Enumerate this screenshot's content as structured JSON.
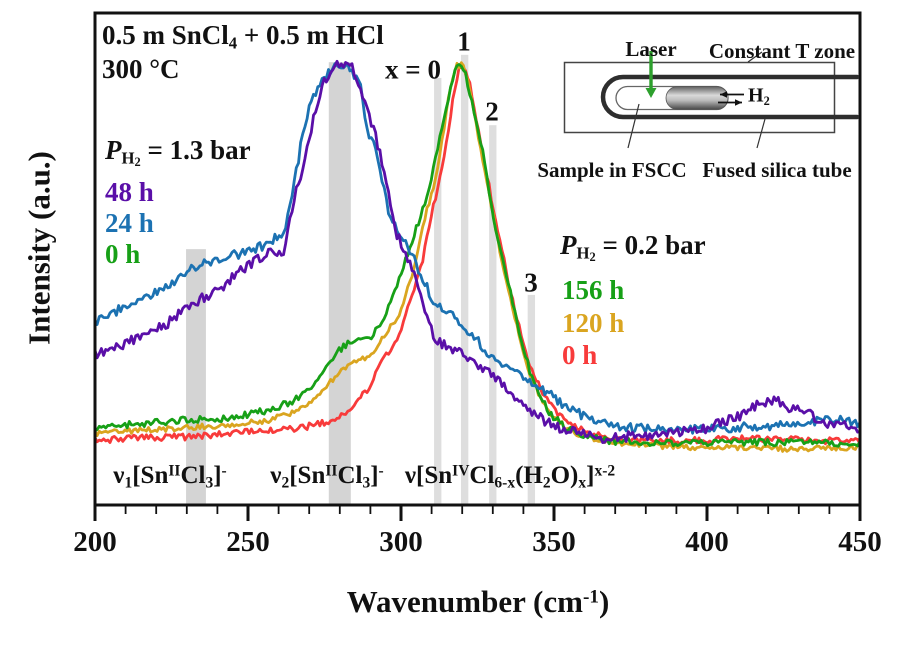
{
  "figure": {
    "title_line1_parts": [
      [
        "n",
        "0.5 m SnCl"
      ],
      [
        "sub",
        "4"
      ],
      [
        "n",
        " + 0.5 m HCl"
      ]
    ],
    "title_line2": "300 °C",
    "xlabel_parts": [
      [
        "n",
        "Wavenumber (cm"
      ],
      [
        "sup",
        "-1"
      ],
      [
        "n",
        ")"
      ]
    ],
    "ylabel": "Intensity (a.u.)"
  },
  "legends": {
    "left": {
      "header_parts": [
        [
          "i",
          "P"
        ],
        [
          "sub",
          "H"
        ],
        [
          "subsub",
          "2"
        ],
        [
          "n",
          " = 1.3 bar"
        ]
      ],
      "items": [
        {
          "label": "48 h",
          "color": "#5A0FA8"
        },
        {
          "label": "24 h",
          "color": "#1C72B2"
        },
        {
          "label": "0 h",
          "color": "#17A017"
        }
      ]
    },
    "right": {
      "header_parts": [
        [
          "i",
          "P"
        ],
        [
          "sub",
          "H"
        ],
        [
          "subsub",
          "2"
        ],
        [
          "n",
          " = 0.2 bar"
        ]
      ],
      "items": [
        {
          "label": "156 h",
          "color": "#17A017"
        },
        {
          "label": "120 h",
          "color": "#DAA520"
        },
        {
          "label": "0 h",
          "color": "#F83B3B"
        }
      ]
    }
  },
  "peak_labels": {
    "x0_parts": [
      [
        "b",
        "x"
      ],
      [
        "n",
        " = 0"
      ]
    ],
    "p1": "1",
    "p2": "2",
    "p3": "3"
  },
  "band_annotations": {
    "nu1_parts": [
      [
        "n",
        "ν"
      ],
      [
        "sub",
        "1"
      ],
      [
        "n",
        "[Sn"
      ],
      [
        "sup",
        "II"
      ],
      [
        "n",
        "Cl"
      ],
      [
        "sub",
        "3"
      ],
      [
        "n",
        "]"
      ],
      [
        "sup",
        "-"
      ]
    ],
    "nu2_parts": [
      [
        "n",
        "ν"
      ],
      [
        "sub",
        "2"
      ],
      [
        "n",
        "[Sn"
      ],
      [
        "sup",
        "II"
      ],
      [
        "n",
        "Cl"
      ],
      [
        "sub",
        "3"
      ],
      [
        "n",
        "]"
      ],
      [
        "sup",
        "-"
      ]
    ],
    "nu3_parts": [
      [
        "n",
        "ν[Sn"
      ],
      [
        "sup",
        "IV"
      ],
      [
        "n",
        "Cl"
      ],
      [
        "sub",
        "6-x"
      ],
      [
        "n",
        "(H"
      ],
      [
        "sub",
        "2"
      ],
      [
        "n",
        "O)"
      ],
      [
        "sub",
        "x"
      ],
      [
        "n",
        "]"
      ],
      [
        "sup",
        "x-2"
      ]
    ]
  },
  "inset": {
    "laser": "Laser",
    "laser_color": "#2DA02D",
    "constant_t": "Constant T zone",
    "h2_parts": [
      [
        "n",
        "H"
      ],
      [
        "sub",
        "2"
      ]
    ],
    "sample": "Sample in FSCC",
    "tube": "Fused silica tube"
  },
  "chart_data": {
    "type": "line",
    "title": "0.5 m SnCl4 + 0.5 m HCl, 300 °C",
    "xlabel": "Wavenumber (cm-1)",
    "ylabel": "Intensity (a.u.)",
    "xlim": [
      200,
      450
    ],
    "ylim": [
      0,
      1
    ],
    "y_units": "normalized arbitrary units",
    "grid": false,
    "xticks": [
      200,
      250,
      300,
      350,
      400,
      450
    ],
    "minor_tick_step": 10,
    "legend_groups": [
      {
        "header": "P_H2 = 1.3 bar",
        "entries": [
          "48 h",
          "24 h",
          "0 h"
        ]
      },
      {
        "header": "P_H2 = 0.2 bar",
        "entries": [
          "156 h",
          "120 h",
          "0 h"
        ]
      }
    ],
    "shaded_bands": [
      {
        "label": "ν1[Sn(II)Cl3]-",
        "center": 233.0,
        "width": 6.5,
        "top": 0.52,
        "shade": "#cdcdcd"
      },
      {
        "label": "ν2[Sn(II)Cl3]-",
        "center": 280.0,
        "width": 7.2,
        "top": 0.9,
        "shade": "#cdcdcd"
      },
      {
        "label": "x = 0",
        "center": 312.0,
        "width": 2.4,
        "top": 0.868,
        "shade": "#d8d8d8"
      },
      {
        "label": "1",
        "center": 320.8,
        "width": 2.4,
        "top": 0.915,
        "shade": "#d8d8d8"
      },
      {
        "label": "2",
        "center": 330.0,
        "width": 2.4,
        "top": 0.772,
        "shade": "#d8d8d8"
      },
      {
        "label": "3",
        "center": 342.6,
        "width": 2.4,
        "top": 0.427,
        "shade": "#d8d8d8"
      }
    ],
    "series": [
      {
        "name": "0 h (P_H2 = 0.2 bar)",
        "color": "#F83B3B",
        "noise_amp": 3.4,
        "seed": 101,
        "points": [
          [
            200,
            0.132
          ],
          [
            215,
            0.136
          ],
          [
            229,
            0.138
          ],
          [
            244,
            0.146
          ],
          [
            257,
            0.152
          ],
          [
            267,
            0.157
          ],
          [
            273,
            0.165
          ],
          [
            279,
            0.173
          ],
          [
            284,
            0.197
          ],
          [
            289,
            0.234
          ],
          [
            294,
            0.295
          ],
          [
            299,
            0.342
          ],
          [
            303,
            0.417
          ],
          [
            307,
            0.494
          ],
          [
            310,
            0.589
          ],
          [
            314,
            0.701
          ],
          [
            317,
            0.823
          ],
          [
            319,
            0.884
          ],
          [
            320.6,
            0.892
          ],
          [
            322.5,
            0.854
          ],
          [
            325,
            0.772
          ],
          [
            328,
            0.671
          ],
          [
            332,
            0.549
          ],
          [
            336,
            0.427
          ],
          [
            340,
            0.325
          ],
          [
            344,
            0.254
          ],
          [
            349,
            0.203
          ],
          [
            354,
            0.169
          ],
          [
            360,
            0.148
          ],
          [
            372,
            0.132
          ],
          [
            391,
            0.13
          ],
          [
            411,
            0.136
          ],
          [
            430,
            0.132
          ],
          [
            450,
            0.13
          ]
        ]
      },
      {
        "name": "120 h (P_H2 = 0.2 bar)",
        "color": "#DAA520",
        "noise_amp": 2.8,
        "seed": 202,
        "points": [
          [
            200,
            0.146
          ],
          [
            215,
            0.152
          ],
          [
            229,
            0.157
          ],
          [
            244,
            0.163
          ],
          [
            257,
            0.173
          ],
          [
            267,
            0.193
          ],
          [
            273,
            0.222
          ],
          [
            279,
            0.264
          ],
          [
            285,
            0.291
          ],
          [
            290,
            0.305
          ],
          [
            295,
            0.346
          ],
          [
            300,
            0.396
          ],
          [
            304,
            0.474
          ],
          [
            307,
            0.569
          ],
          [
            311,
            0.65
          ],
          [
            314,
            0.762
          ],
          [
            316,
            0.848
          ],
          [
            318,
            0.892
          ],
          [
            320,
            0.896
          ],
          [
            322,
            0.864
          ],
          [
            324,
            0.793
          ],
          [
            327,
            0.691
          ],
          [
            331,
            0.559
          ],
          [
            335,
            0.437
          ],
          [
            339,
            0.335
          ],
          [
            342,
            0.27
          ],
          [
            346,
            0.213
          ],
          [
            350,
            0.177
          ],
          [
            355,
            0.152
          ],
          [
            362,
            0.136
          ],
          [
            372,
            0.124
          ],
          [
            391,
            0.118
          ],
          [
            411,
            0.116
          ],
          [
            430,
            0.114
          ],
          [
            450,
            0.118
          ]
        ]
      },
      {
        "name": "156 h (P_H2 = 0.2 bar)",
        "color": "#17A017",
        "noise_amp": 3.4,
        "seed": 303,
        "points": [
          [
            200,
            0.157
          ],
          [
            215,
            0.165
          ],
          [
            229,
            0.173
          ],
          [
            244,
            0.177
          ],
          [
            257,
            0.193
          ],
          [
            267,
            0.218
          ],
          [
            273,
            0.254
          ],
          [
            279,
            0.311
          ],
          [
            285,
            0.339
          ],
          [
            290,
            0.339
          ],
          [
            294,
            0.376
          ],
          [
            298,
            0.431
          ],
          [
            302,
            0.508
          ],
          [
            306,
            0.579
          ],
          [
            310,
            0.661
          ],
          [
            313,
            0.762
          ],
          [
            316,
            0.843
          ],
          [
            318,
            0.892
          ],
          [
            319.6,
            0.9
          ],
          [
            321,
            0.88
          ],
          [
            323,
            0.823
          ],
          [
            326,
            0.742
          ],
          [
            329,
            0.63
          ],
          [
            332,
            0.528
          ],
          [
            336,
            0.427
          ],
          [
            339,
            0.346
          ],
          [
            342,
            0.274
          ],
          [
            345,
            0.224
          ],
          [
            349,
            0.183
          ],
          [
            354,
            0.157
          ],
          [
            360,
            0.138
          ],
          [
            372,
            0.128
          ],
          [
            391,
            0.126
          ],
          [
            411,
            0.128
          ],
          [
            430,
            0.126
          ],
          [
            450,
            0.126
          ]
        ]
      },
      {
        "name": "24 h (P_H2 = 1.3 bar)",
        "color": "#1C72B2",
        "noise_amp": 4.6,
        "seed": 404,
        "points": [
          [
            200,
            0.372
          ],
          [
            211,
            0.407
          ],
          [
            223,
            0.441
          ],
          [
            230,
            0.478
          ],
          [
            241,
            0.502
          ],
          [
            250,
            0.514
          ],
          [
            257,
            0.533
          ],
          [
            262,
            0.559
          ],
          [
            264,
            0.61
          ],
          [
            267,
            0.722
          ],
          [
            270,
            0.809
          ],
          [
            274,
            0.858
          ],
          [
            278,
            0.894
          ],
          [
            282,
            0.898
          ],
          [
            284,
            0.884
          ],
          [
            287,
            0.843
          ],
          [
            289,
            0.762
          ],
          [
            292,
            0.722
          ],
          [
            296,
            0.589
          ],
          [
            303,
            0.518
          ],
          [
            311,
            0.407
          ],
          [
            319,
            0.376
          ],
          [
            329,
            0.305
          ],
          [
            342,
            0.254
          ],
          [
            352,
            0.209
          ],
          [
            362,
            0.173
          ],
          [
            375,
            0.157
          ],
          [
            391,
            0.152
          ],
          [
            408,
            0.157
          ],
          [
            424,
            0.163
          ],
          [
            437,
            0.173
          ],
          [
            445,
            0.173
          ],
          [
            450,
            0.163
          ]
        ]
      },
      {
        "name": "48 h (P_H2 = 1.3 bar)",
        "color": "#5A0FA8",
        "noise_amp": 5.0,
        "seed": 505,
        "points": [
          [
            200,
            0.305
          ],
          [
            211,
            0.331
          ],
          [
            223,
            0.366
          ],
          [
            230,
            0.402
          ],
          [
            241,
            0.441
          ],
          [
            250,
            0.488
          ],
          [
            257,
            0.514
          ],
          [
            262,
            0.518
          ],
          [
            265,
            0.62
          ],
          [
            269,
            0.711
          ],
          [
            272,
            0.803
          ],
          [
            275,
            0.864
          ],
          [
            279,
            0.896
          ],
          [
            283,
            0.9
          ],
          [
            285,
            0.88
          ],
          [
            288,
            0.823
          ],
          [
            292,
            0.742
          ],
          [
            295,
            0.671
          ],
          [
            298,
            0.559
          ],
          [
            303,
            0.494
          ],
          [
            308,
            0.396
          ],
          [
            311,
            0.335
          ],
          [
            319,
            0.311
          ],
          [
            329,
            0.268
          ],
          [
            342,
            0.187
          ],
          [
            352,
            0.157
          ],
          [
            365,
            0.136
          ],
          [
            381,
            0.142
          ],
          [
            398,
            0.152
          ],
          [
            411,
            0.183
          ],
          [
            417,
            0.207
          ],
          [
            422,
            0.213
          ],
          [
            427,
            0.197
          ],
          [
            434,
            0.183
          ],
          [
            440,
            0.163
          ],
          [
            450,
            0.157
          ]
        ]
      }
    ]
  }
}
